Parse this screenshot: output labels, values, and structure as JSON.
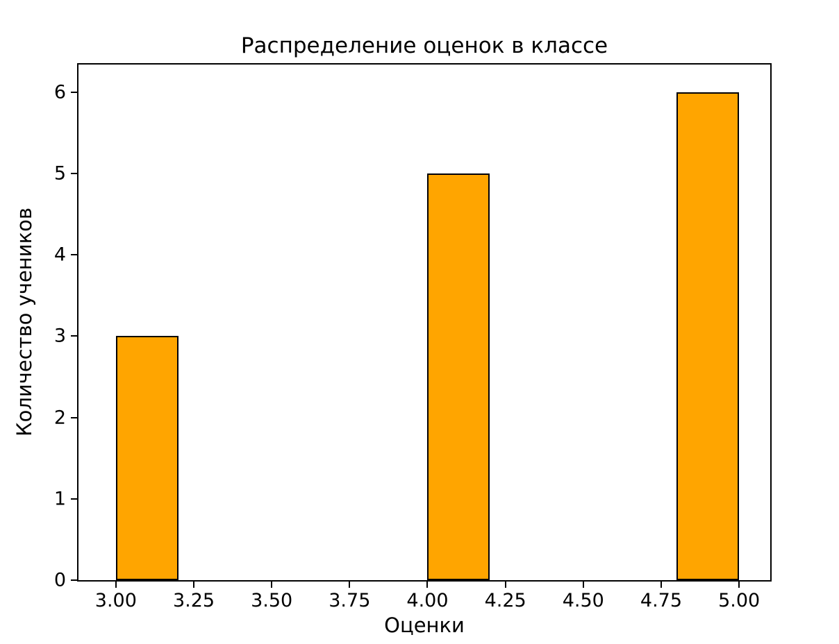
{
  "chart_data": {
    "type": "bar",
    "title": "Распределение оценок в классе",
    "xlabel": "Оценки",
    "ylabel": "Количество учеников",
    "bars": [
      {
        "x_start": 3.0,
        "x_end": 3.2,
        "count": 3
      },
      {
        "x_start": 4.0,
        "x_end": 4.2,
        "count": 5
      },
      {
        "x_start": 4.8,
        "x_end": 5.0,
        "count": 6
      }
    ],
    "x_ticks": [
      {
        "value": 3.0,
        "label": "3.00"
      },
      {
        "value": 3.25,
        "label": "3.25"
      },
      {
        "value": 3.5,
        "label": "3.50"
      },
      {
        "value": 3.75,
        "label": "3.75"
      },
      {
        "value": 4.0,
        "label": "4.00"
      },
      {
        "value": 4.25,
        "label": "4.25"
      },
      {
        "value": 4.5,
        "label": "4.50"
      },
      {
        "value": 4.75,
        "label": "4.75"
      },
      {
        "value": 5.0,
        "label": "5.00"
      }
    ],
    "y_ticks": [
      {
        "value": 0,
        "label": "0"
      },
      {
        "value": 1,
        "label": "1"
      },
      {
        "value": 2,
        "label": "2"
      },
      {
        "value": 3,
        "label": "3"
      },
      {
        "value": 4,
        "label": "4"
      },
      {
        "value": 5,
        "label": "5"
      },
      {
        "value": 6,
        "label": "6"
      }
    ],
    "xlim": [
      2.88,
      5.1
    ],
    "ylim": [
      0,
      6.34
    ],
    "grid": false,
    "legend": null,
    "colors": {
      "bar_fill": "#FFA500",
      "bar_edge": "#000000",
      "axis": "#000000",
      "background": "#ffffff"
    }
  }
}
